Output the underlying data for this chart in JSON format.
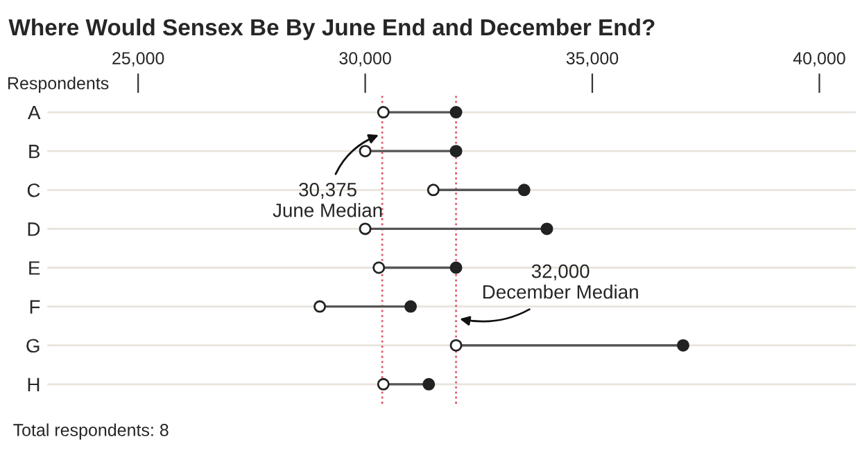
{
  "chart_data": {
    "type": "scatter",
    "orientation": "horizontal",
    "title": "Where Would Sensex Be By June End and December End?",
    "ylabel": "Respondents",
    "categories": [
      "A",
      "B",
      "C",
      "D",
      "E",
      "F",
      "G",
      "H"
    ],
    "series": [
      {
        "color": "#ffffff",
        "values": [
          30400,
          30000,
          31500,
          30000,
          30300,
          29000,
          32000,
          30400
        ]
      },
      {
        "color": "#222222",
        "values": [
          32000,
          32000,
          33500,
          34000,
          32000,
          31000,
          37000,
          31400
        ]
      }
    ],
    "marker": "circle",
    "xlim": [
      23000,
      40800
    ],
    "xticks": [
      {
        "value": 25000,
        "label": "25,000"
      },
      {
        "value": 30000,
        "label": "30,000"
      },
      {
        "value": 35000,
        "label": "35,000"
      },
      {
        "value": 40000,
        "label": "40,000"
      }
    ],
    "grid": "y",
    "ref_lines": [
      {
        "axis": "x",
        "value": 30375,
        "label": "30,375\nJune Median",
        "color": "#e05a6a",
        "line_style": "dotted"
      },
      {
        "axis": "x",
        "value": 32000,
        "label": "32,000\nDecember Median",
        "color": "#e05a6a",
        "line_style": "dotted"
      }
    ],
    "annotations": [
      "Total respondents: 8"
    ]
  }
}
